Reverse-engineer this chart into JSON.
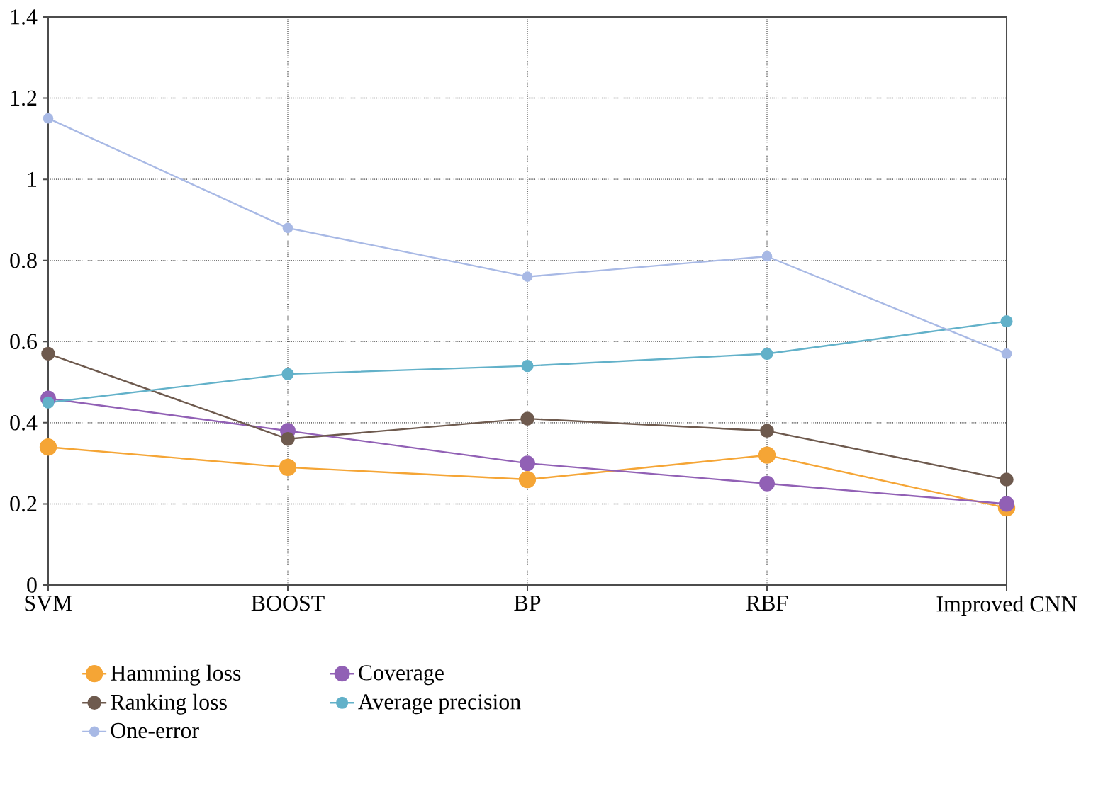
{
  "chart_data": {
    "type": "line",
    "categories": [
      "SVM",
      "BOOST",
      "BP",
      "RBF",
      "Improved CNN"
    ],
    "series": [
      {
        "name": "Hamming loss",
        "color": "#f5a535",
        "values": [
          0.34,
          0.29,
          0.26,
          0.32,
          0.19
        ]
      },
      {
        "name": "Coverage",
        "color": "#9160b5",
        "values": [
          0.46,
          0.38,
          0.3,
          0.25,
          0.2
        ]
      },
      {
        "name": "Ranking loss",
        "color": "#6e5a4e",
        "values": [
          0.57,
          0.36,
          0.41,
          0.38,
          0.26
        ]
      },
      {
        "name": "Average precision",
        "color": "#62b1c9",
        "values": [
          0.45,
          0.52,
          0.54,
          0.57,
          0.65
        ]
      },
      {
        "name": "One-error",
        "color": "#a8b9e5",
        "values": [
          1.15,
          0.88,
          0.76,
          0.81,
          0.57
        ]
      }
    ],
    "ylim": [
      0,
      1.4
    ],
    "yticks": [
      0,
      0.2,
      0.4,
      0.6,
      0.8,
      1,
      1.2,
      1.4
    ],
    "grid": true,
    "legend": "bottom",
    "marker": "circle",
    "line_style": "solid"
  }
}
